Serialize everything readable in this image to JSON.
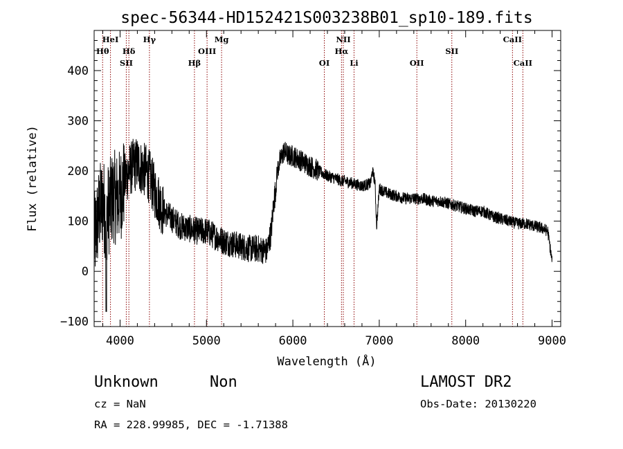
{
  "chart_data": {
    "type": "line",
    "title": "spec-56344-HD152421S003238B01_sp10-189.fits",
    "xlabel": "Wavelength (Å)",
    "ylabel": "Flux (relative)",
    "xlim": [
      3700,
      9100
    ],
    "ylim": [
      -110,
      480
    ],
    "x_ticks": [
      4000,
      5000,
      6000,
      7000,
      8000,
      9000
    ],
    "y_ticks": [
      -100,
      0,
      100,
      200,
      300,
      400
    ],
    "grid": false,
    "legend": "none",
    "series": [
      {
        "x": [
          3700,
          3760,
          3800,
          3840,
          3880,
          3920,
          3960,
          4000,
          4050,
          4100,
          4150,
          4200,
          4250,
          4300,
          4350,
          4400,
          4450,
          4500,
          4600,
          4700,
          4800,
          4900,
          5000,
          5100,
          5200,
          5300,
          5400,
          5500,
          5600,
          5700,
          5750,
          5780,
          5800,
          5820,
          5850,
          5900,
          5950,
          6000,
          6050,
          6100,
          6200,
          6300,
          6400,
          6500,
          6563,
          6600,
          6700,
          6800,
          6900,
          6920,
          6950,
          6970,
          7000,
          7050,
          7100,
          7200,
          7300,
          7400,
          7500,
          7600,
          7700,
          7800,
          7900,
          8000,
          8100,
          8200,
          8300,
          8400,
          8500,
          8600,
          8700,
          8800,
          8900,
          8950,
          9000
        ],
        "y": [
          60,
          120,
          140,
          110,
          130,
          150,
          145,
          150,
          180,
          200,
          210,
          215,
          205,
          200,
          185,
          160,
          140,
          120,
          105,
          90,
          85,
          80,
          80,
          70,
          60,
          55,
          50,
          45,
          45,
          40,
          80,
          140,
          160,
          200,
          220,
          240,
          230,
          230,
          225,
          220,
          210,
          200,
          190,
          185,
          180,
          180,
          175,
          170,
          175,
          200,
          180,
          90,
          165,
          160,
          155,
          150,
          145,
          145,
          145,
          140,
          140,
          135,
          130,
          125,
          120,
          120,
          110,
          105,
          100,
          95,
          95,
          90,
          85,
          80,
          20
        ]
      }
    ],
    "line_markers": [
      {
        "label": "HeI",
        "x": 3889,
        "row": 0
      },
      {
        "label": "Hγ",
        "x": 4340,
        "row": 0
      },
      {
        "label": "Mg",
        "x": 5175,
        "row": 0
      },
      {
        "label": "NII",
        "x": 6584,
        "row": 0
      },
      {
        "label": "CaII",
        "x": 8542,
        "row": 0
      },
      {
        "label": "Hθ",
        "x": 3798,
        "row": 1
      },
      {
        "label": "Hδ",
        "x": 4102,
        "row": 1
      },
      {
        "label": "OIII",
        "x": 5007,
        "row": 1
      },
      {
        "label": "Hα",
        "x": 6563,
        "row": 1
      },
      {
        "label": "SII",
        "x": 7840,
        "row": 1
      },
      {
        "label": "SII",
        "x": 4072,
        "row": 2
      },
      {
        "label": "Hβ",
        "x": 4861,
        "row": 2
      },
      {
        "label": "OI",
        "x": 6364,
        "row": 2
      },
      {
        "label": "Li",
        "x": 6708,
        "row": 2
      },
      {
        "label": "OII",
        "x": 7435,
        "row": 2
      },
      {
        "label": "CaII",
        "x": 8662,
        "row": 2
      }
    ]
  },
  "footer": {
    "class_left": "Unknown",
    "class_right": "Non",
    "survey": "LAMOST DR2",
    "cz": "cz = NaN",
    "obs_date": "Obs-Date: 20130220",
    "coords": "RA = 228.99985, DEC =  -1.71388"
  },
  "colors": {
    "spectrum": "#000000",
    "marker_line": "#8b0000"
  }
}
